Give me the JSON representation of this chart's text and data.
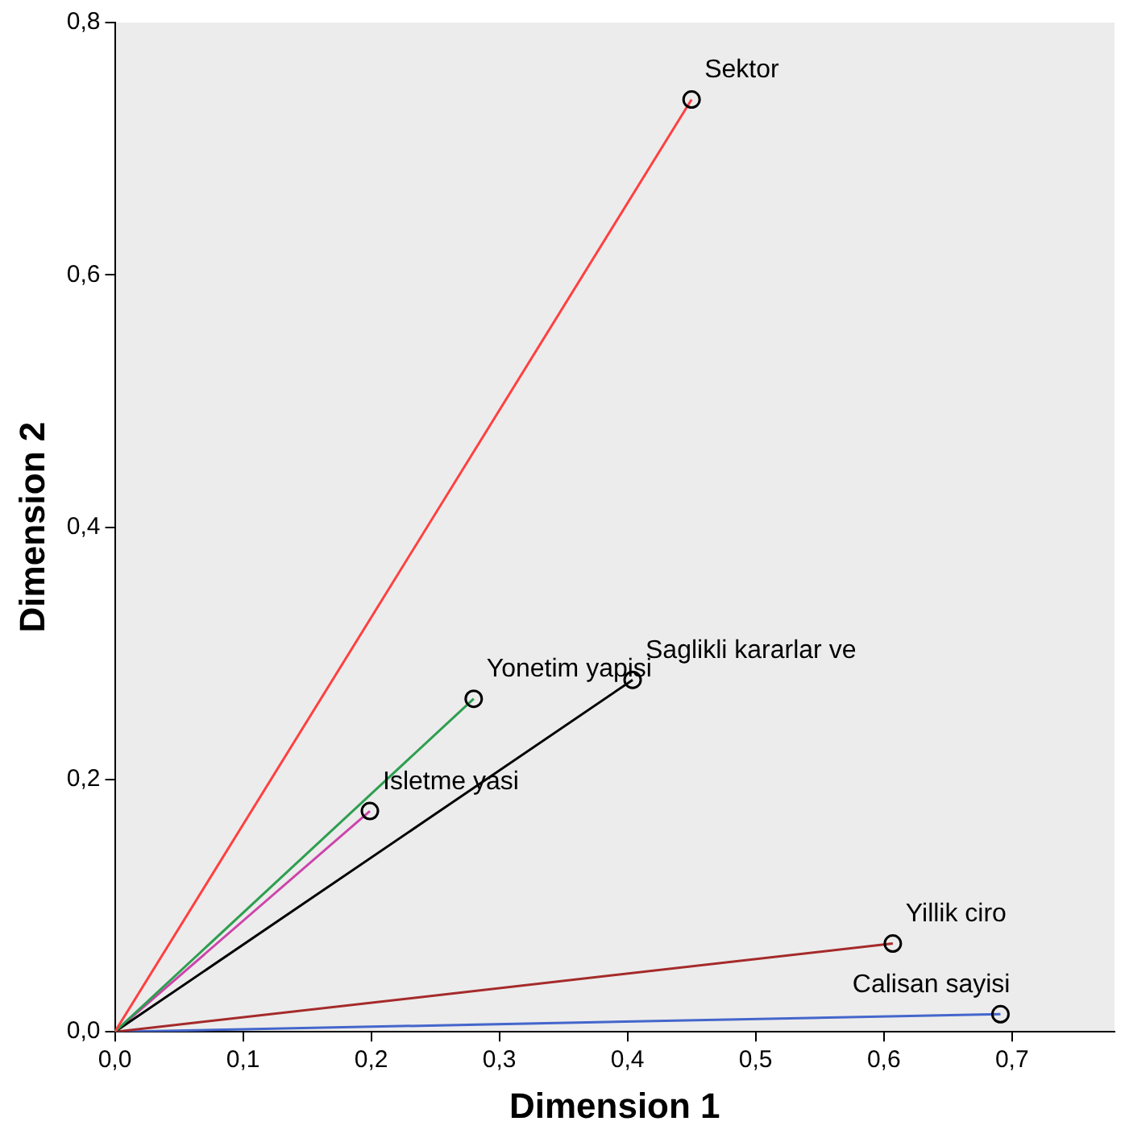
{
  "chart_data": {
    "type": "line",
    "xlabel": "Dimension 1",
    "ylabel": "Dimension 2",
    "xlim": [
      0,
      0.78
    ],
    "ylim": [
      0,
      0.8
    ],
    "xticks": [
      {
        "value": 0,
        "label": "0,0"
      },
      {
        "value": 0.1,
        "label": "0,1"
      },
      {
        "value": 0.2,
        "label": "0,2"
      },
      {
        "value": 0.3,
        "label": "0,3"
      },
      {
        "value": 0.4,
        "label": "0,4"
      },
      {
        "value": 0.5,
        "label": "0,5"
      },
      {
        "value": 0.6,
        "label": "0,6"
      },
      {
        "value": 0.7,
        "label": "0,7"
      }
    ],
    "yticks": [
      {
        "value": 0,
        "label": "0,0"
      },
      {
        "value": 0.2,
        "label": "0,2"
      },
      {
        "value": 0.4,
        "label": "0,4"
      },
      {
        "value": 0.6,
        "label": "0,6"
      },
      {
        "value": 0.8,
        "label": "0,8"
      }
    ],
    "marker": "circle",
    "grid": false,
    "legend": false,
    "series": [
      {
        "name": "Sektor",
        "color": "#ff4040",
        "x": [
          0,
          0.45
        ],
        "values": [
          0,
          0.739
        ]
      },
      {
        "name": "Yonetim yapisi",
        "color": "#2e9e50",
        "x": [
          0,
          0.28
        ],
        "values": [
          0,
          0.264
        ]
      },
      {
        "name": "Saglikli kararlar ve",
        "color": "#000000",
        "x": [
          0,
          0.404
        ],
        "values": [
          0,
          0.279
        ]
      },
      {
        "name": "Isletme yasi",
        "color": "#cc44aa",
        "x": [
          0,
          0.199
        ],
        "values": [
          0,
          0.175
        ]
      },
      {
        "name": "Yillik ciro",
        "color": "#a52a2a",
        "x": [
          0,
          0.607
        ],
        "values": [
          0,
          0.07
        ]
      },
      {
        "name": "Calisan sayisi",
        "color": "#4466cc",
        "x": [
          0,
          0.691
        ],
        "values": [
          0,
          0.014
        ]
      }
    ]
  }
}
